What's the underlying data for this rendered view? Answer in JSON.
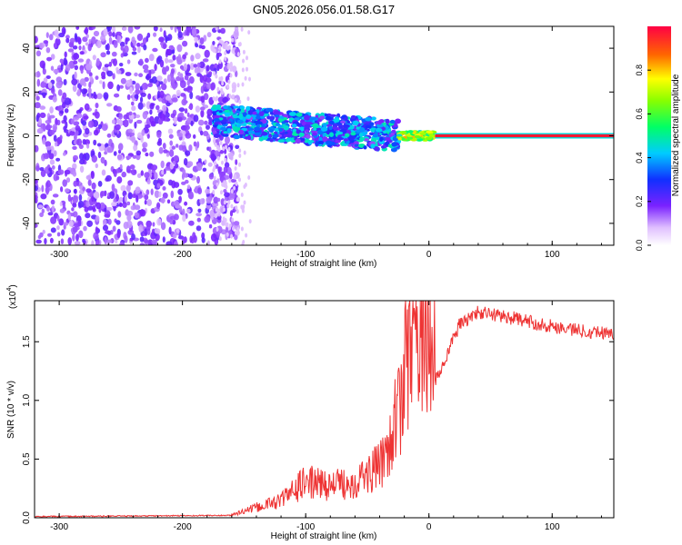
{
  "title": "GN05.2026.056.01.58.G17",
  "chart_data": [
    {
      "type": "heatmap",
      "name": "spectrogram",
      "xlabel": "Height of straight line (km)",
      "ylabel": "Frequency (Hz)",
      "xlim": [
        -320,
        150
      ],
      "ylim": [
        -50,
        50
      ],
      "xticks": [
        -300,
        -200,
        -100,
        0,
        100
      ],
      "yticks": [
        -40,
        -20,
        0,
        20,
        40
      ],
      "colorbar": {
        "label": "Normalized spectral amplitude",
        "range": [
          0,
          1
        ],
        "ticks": [
          "0.0",
          "0.2",
          "0.4",
          "0.6",
          "0.8"
        ]
      },
      "signal": {
        "noise_region_km": [
          -320,
          -175
        ],
        "noise_level": 0.12,
        "chaotic_region_km": [
          -175,
          -25
        ],
        "chaotic_level": 0.38,
        "mixed_region_km": [
          -25,
          5
        ],
        "mixed_level": 0.75,
        "tone_region_km": [
          5,
          150
        ],
        "tone_level": 0.97,
        "tone_frequency_hz": 0
      }
    },
    {
      "type": "line",
      "name": "snr",
      "xlabel": "Height of straight line (km)",
      "ylabel": "SNR (10 * v/v)",
      "multiplier": "(x10",
      "multiplier_exp": "4",
      "xlim": [
        -320,
        150
      ],
      "ylim": [
        0,
        1.85
      ],
      "xticks": [
        -300,
        -200,
        -100,
        0,
        100
      ],
      "yticks": [
        "0.0",
        "0.5",
        "1.0",
        "1.5"
      ],
      "ytick_values": [
        0,
        0.5,
        1.0,
        1.5
      ],
      "color": "#ee3333",
      "series_profile": [
        {
          "x": -320,
          "y": 0.01
        },
        {
          "x": -160,
          "y": 0.02
        },
        {
          "x": -140,
          "y": 0.07
        },
        {
          "x": -120,
          "y": 0.12
        },
        {
          "x": -100,
          "y": 0.25
        },
        {
          "x": -80,
          "y": 0.22
        },
        {
          "x": -60,
          "y": 0.25
        },
        {
          "x": -40,
          "y": 0.35
        },
        {
          "x": -25,
          "y": 0.7
        },
        {
          "x": -15,
          "y": 1.2
        },
        {
          "x": -5,
          "y": 1.3
        },
        {
          "x": 5,
          "y": 1.15
        },
        {
          "x": 15,
          "y": 1.4
        },
        {
          "x": 25,
          "y": 1.65
        },
        {
          "x": 40,
          "y": 1.75
        },
        {
          "x": 60,
          "y": 1.72
        },
        {
          "x": 90,
          "y": 1.65
        },
        {
          "x": 120,
          "y": 1.6
        },
        {
          "x": 150,
          "y": 1.57
        }
      ]
    }
  ]
}
